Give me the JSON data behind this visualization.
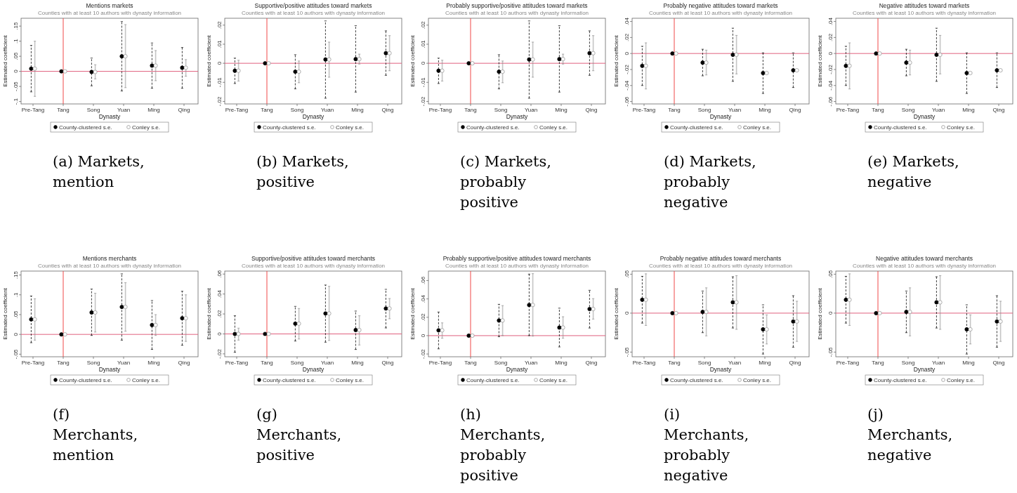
{
  "chart_data": [
    {
      "type": "scatter",
      "title": "Mentions markets",
      "subtitle": "Counties with at least 10 authors with dynasty information",
      "xlabel": "Dynasty",
      "ylabel": "Estimated coefficient",
      "annotations": [
        "(a) Markets, mention"
      ],
      "categories": [
        "Pre-Tang",
        "Tang",
        "Song",
        "Yuan",
        "Ming",
        "Qing"
      ],
      "ylim": [
        -0.108,
        0.176
      ],
      "yticks": [
        {
          "value": -0.1,
          "label": "-.1"
        },
        {
          "value": -0.05,
          "label": "-.05"
        },
        {
          "value": 0,
          "label": "0"
        },
        {
          "value": 0.05,
          "label": ".05"
        },
        {
          "value": 0.1,
          "label": ".1"
        },
        {
          "value": 0.15,
          "label": ".15"
        }
      ],
      "legend": "bottom",
      "marker": "circle",
      "ref_lines": [
        {
          "axis": "y",
          "value": 0,
          "color": "#e0607e"
        },
        {
          "axis": "x",
          "value": "Tang",
          "color": "#f04848"
        }
      ],
      "series": [
        {
          "name": "County-clustered s.e.",
          "color": "#000000",
          "values": [
            0.009,
            0,
            -0.002,
            0.05,
            0.019,
            0.012
          ],
          "errors": [
            [
              -0.068,
              0.086
            ],
            null,
            [
              -0.048,
              0.044
            ],
            [
              -0.065,
              0.165
            ],
            [
              -0.056,
              0.094
            ],
            [
              -0.056,
              0.079
            ]
          ]
        },
        {
          "name": "Conley s.e.",
          "color": "#8c8c8c",
          "values": [
            0.009,
            0,
            -0.002,
            0.05,
            0.019,
            0.012
          ],
          "errors": [
            [
              -0.083,
              0.1
            ],
            null,
            [
              -0.025,
              0.022
            ],
            [
              -0.054,
              0.155
            ],
            [
              -0.031,
              0.069
            ],
            [
              -0.016,
              0.039
            ]
          ]
        }
      ]
    },
    {
      "type": "scatter",
      "title": "Supportive/positive attitudes toward markets",
      "subtitle": "Counties with at least 10 authors with dynasty information",
      "xlabel": "Dynasty",
      "ylabel": "Estimated coefficient",
      "annotations": [
        "(b) Markets, positive"
      ],
      "categories": [
        "Pre-Tang",
        "Tang",
        "Song",
        "Yuan",
        "Ming",
        "Qing"
      ],
      "ylim": [
        -0.0213,
        0.0236
      ],
      "yticks": [
        {
          "value": -0.02,
          "label": "-.02"
        },
        {
          "value": -0.01,
          "label": "-.01"
        },
        {
          "value": 0,
          "label": "0"
        },
        {
          "value": 0.01,
          "label": ".01"
        },
        {
          "value": 0.02,
          "label": ".02"
        }
      ],
      "legend": "bottom",
      "marker": "circle",
      "ref_lines": [
        {
          "axis": "y",
          "value": 0,
          "color": "#e0607e"
        },
        {
          "axis": "x",
          "value": "Tang",
          "color": "#f04848"
        }
      ],
      "series": [
        {
          "name": "County-clustered s.e.",
          "color": "#000000",
          "values": [
            -0.0039,
            0,
            -0.0044,
            0.002,
            0.0022,
            0.0053
          ],
          "errors": [
            [
              -0.0106,
              0.0027
            ],
            null,
            [
              -0.0134,
              0.0045
            ],
            [
              -0.0183,
              0.0222
            ],
            [
              -0.0151,
              0.0197
            ],
            [
              -0.0063,
              0.017
            ]
          ]
        },
        {
          "name": "Conley s.e.",
          "color": "#8c8c8c",
          "values": [
            -0.0039,
            0,
            -0.0044,
            0.002,
            0.0022,
            0.0053
          ],
          "errors": [
            [
              -0.0093,
              0.0016
            ],
            null,
            [
              -0.0102,
              0.0012
            ],
            [
              -0.0073,
              0.0111
            ],
            [
              -0.0004,
              0.0048
            ],
            [
              -0.0039,
              0.0145
            ]
          ]
        }
      ]
    },
    {
      "type": "scatter",
      "title": "Probably supportive/positive attitudes toward markets",
      "subtitle": "Counties with at least 10 authors with dynasty information",
      "xlabel": "Dynasty",
      "ylabel": "Estimated coefficient",
      "annotations": [
        "(c) Markets, probably positive"
      ],
      "categories": [
        "Pre-Tang",
        "Tang",
        "Song",
        "Yuan",
        "Ming",
        "Qing"
      ],
      "ylim": [
        -0.0213,
        0.0236
      ],
      "yticks": [
        {
          "value": -0.02,
          "label": "-.02"
        },
        {
          "value": -0.01,
          "label": "-.01"
        },
        {
          "value": 0,
          "label": "0"
        },
        {
          "value": 0.01,
          "label": ".01"
        },
        {
          "value": 0.02,
          "label": ".02"
        }
      ],
      "legend": "bottom",
      "marker": "circle",
      "ref_lines": [
        {
          "axis": "y",
          "value": 0,
          "color": "#e0607e"
        },
        {
          "axis": "x",
          "value": "Tang",
          "color": "#f04848"
        }
      ],
      "series": [
        {
          "name": "County-clustered s.e.",
          "color": "#000000",
          "values": [
            -0.0039,
            0,
            -0.0044,
            0.002,
            0.0022,
            0.0053
          ],
          "errors": [
            [
              -0.0106,
              0.0027
            ],
            null,
            [
              -0.0134,
              0.0045
            ],
            [
              -0.0183,
              0.0222
            ],
            [
              -0.0151,
              0.0197
            ],
            [
              -0.0063,
              0.017
            ]
          ]
        },
        {
          "name": "Conley s.e.",
          "color": "#8c8c8c",
          "values": [
            -0.0039,
            0,
            -0.0044,
            0.002,
            0.0022,
            0.0053
          ],
          "errors": [
            [
              -0.0093,
              0.0016
            ],
            null,
            [
              -0.0102,
              0.0012
            ],
            [
              -0.0073,
              0.0111
            ],
            [
              -0.0004,
              0.0048
            ],
            [
              -0.0039,
              0.0145
            ]
          ]
        }
      ]
    },
    {
      "type": "scatter",
      "title": "Probably negative attitudes toward markets",
      "subtitle": "Counties with at least 10 authors with dynasty information",
      "xlabel": "Dynasty",
      "ylabel": "Estimated coefficient",
      "annotations": [
        "(d) Markets, probably negative"
      ],
      "categories": [
        "Pre-Tang",
        "Tang",
        "Song",
        "Yuan",
        "Ming",
        "Qing"
      ],
      "ylim": [
        -0.063,
        0.044
      ],
      "yticks": [
        {
          "value": -0.06,
          "label": "-.06"
        },
        {
          "value": -0.04,
          "label": "-.04"
        },
        {
          "value": -0.02,
          "label": "-.02"
        },
        {
          "value": 0,
          "label": "0"
        },
        {
          "value": 0.02,
          "label": ".02"
        },
        {
          "value": 0.04,
          "label": ".04"
        }
      ],
      "legend": "bottom",
      "marker": "circle",
      "ref_lines": [
        {
          "axis": "y",
          "value": 0,
          "color": "#e0607e"
        },
        {
          "axis": "x",
          "value": "Tang",
          "color": "#f04848"
        }
      ],
      "series": [
        {
          "name": "County-clustered s.e.",
          "color": "#000000",
          "values": [
            -0.0154,
            0,
            -0.0114,
            -0.0016,
            -0.0244,
            -0.021
          ],
          "errors": [
            [
              -0.04,
              0.009
            ],
            null,
            [
              -0.0279,
              0.0053
            ],
            [
              -0.0348,
              0.0316
            ],
            [
              -0.0499,
              0.0008
            ],
            [
              -0.0425,
              0.0008
            ]
          ]
        },
        {
          "name": "Conley s.e.",
          "color": "#8c8c8c",
          "values": [
            -0.0154,
            0,
            -0.0114,
            -0.0016,
            -0.0244,
            -0.021
          ],
          "errors": [
            [
              -0.0443,
              0.0133
            ],
            null,
            [
              -0.0268,
              0.0042
            ],
            [
              -0.0255,
              0.0226
            ],
            null,
            null
          ]
        }
      ]
    },
    {
      "type": "scatter",
      "title": "Negative attitudes toward markets",
      "subtitle": "Counties with at least 10 authors with dynasty information",
      "xlabel": "Dynasty",
      "ylabel": "Estimated coefficient",
      "annotations": [
        "(e) Markets, negative"
      ],
      "categories": [
        "Pre-Tang",
        "Tang",
        "Song",
        "Yuan",
        "Ming",
        "Qing"
      ],
      "ylim": [
        -0.063,
        0.044
      ],
      "yticks": [
        {
          "value": -0.06,
          "label": "-.06"
        },
        {
          "value": -0.04,
          "label": "-.04"
        },
        {
          "value": -0.02,
          "label": "-.02"
        },
        {
          "value": 0,
          "label": "0"
        },
        {
          "value": 0.02,
          "label": ".02"
        },
        {
          "value": 0.04,
          "label": ".04"
        }
      ],
      "legend": "bottom",
      "marker": "circle",
      "ref_lines": [
        {
          "axis": "y",
          "value": 0,
          "color": "#e0607e"
        },
        {
          "axis": "x",
          "value": "Tang",
          "color": "#f04848"
        }
      ],
      "series": [
        {
          "name": "County-clustered s.e.",
          "color": "#000000",
          "values": [
            -0.0154,
            0,
            -0.0114,
            -0.0016,
            -0.0244,
            -0.021
          ],
          "errors": [
            [
              -0.04,
              0.009
            ],
            null,
            [
              -0.0279,
              0.0053
            ],
            [
              -0.0348,
              0.0316
            ],
            [
              -0.0499,
              0.0008
            ],
            [
              -0.0425,
              0.0008
            ]
          ]
        },
        {
          "name": "Conley s.e.",
          "color": "#8c8c8c",
          "values": [
            -0.0154,
            0,
            -0.0114,
            -0.0016,
            -0.0244,
            -0.021
          ],
          "errors": [
            [
              -0.0443,
              0.0133
            ],
            null,
            [
              -0.0268,
              0.0042
            ],
            [
              -0.0255,
              0.0226
            ],
            null,
            null
          ]
        }
      ]
    },
    {
      "type": "scatter",
      "title": "Mentions merchants",
      "subtitle": "Counties with at least 10 authors with dynasty information",
      "xlabel": "Dynasty",
      "ylabel": "Estimated coefficient",
      "annotations": [
        "(f) Merchants, mention"
      ],
      "categories": [
        "Pre-Tang",
        "Tang",
        "Song",
        "Yuan",
        "Ming",
        "Qing"
      ],
      "ylim": [
        -0.0565,
        0.16
      ],
      "yticks": [
        {
          "value": -0.05,
          "label": "-.05"
        },
        {
          "value": 0,
          "label": "0"
        },
        {
          "value": 0.05,
          "label": ".05"
        },
        {
          "value": 0.1,
          "label": ".1"
        },
        {
          "value": 0.15,
          "label": ".15"
        }
      ],
      "legend": "bottom",
      "marker": "circle",
      "ref_lines": [
        {
          "axis": "y",
          "value": 0,
          "color": "#e0607e"
        },
        {
          "axis": "x",
          "value": "Tang",
          "color": "#f04848"
        }
      ],
      "series": [
        {
          "name": "County-clustered s.e.",
          "color": "#000000",
          "values": [
            0.038,
            0,
            0.0554,
            0.0694,
            0.0237,
            0.0409
          ],
          "errors": [
            [
              -0.021,
              0.097
            ],
            null,
            [
              -0.0027,
              0.1145
            ],
            [
              -0.0145,
              0.153
            ],
            [
              -0.038,
              0.0855
            ],
            [
              -0.0274,
              0.109
            ]
          ]
        },
        {
          "name": "Conley s.e.",
          "color": "#8c8c8c",
          "values": [
            0.038,
            0,
            0.0554,
            0.0694,
            0.0237,
            0.0409
          ],
          "errors": [
            [
              -0.0145,
              0.09
            ],
            null,
            [
              0.0059,
              0.104
            ],
            [
              0.0081,
              0.1306
            ],
            [
              -0.0027,
              0.05
            ],
            [
              -0.0177,
              0.1
            ]
          ]
        }
      ]
    },
    {
      "type": "scatter",
      "title": "Supportive/positive attitudes toward merchants",
      "subtitle": "Counties with at least 10 authors with dynasty information",
      "xlabel": "Dynasty",
      "ylabel": "Estimated coefficient",
      "annotations": [
        "(g) Merchants, positive"
      ],
      "categories": [
        "Pre-Tang",
        "Tang",
        "Song",
        "Yuan",
        "Ming",
        "Qing"
      ],
      "ylim": [
        -0.0229,
        0.063
      ],
      "yticks": [
        {
          "value": -0.02,
          "label": "-.02"
        },
        {
          "value": 0,
          "label": "0"
        },
        {
          "value": 0.02,
          "label": ".02"
        },
        {
          "value": 0.04,
          "label": ".04"
        },
        {
          "value": 0.06,
          "label": ".06"
        }
      ],
      "legend": "bottom",
      "marker": "circle",
      "ref_lines": [
        {
          "axis": "y",
          "value": 0,
          "color": "#e0607e"
        },
        {
          "axis": "x",
          "value": "Tang",
          "color": "#f04848"
        }
      ],
      "series": [
        {
          "name": "County-clustered s.e.",
          "color": "#000000",
          "values": [
            0,
            0,
            0.0103,
            0.0205,
            0.0039,
            0.0255
          ],
          "errors": [
            [
              -0.0184,
              0.0182
            ],
            null,
            [
              -0.0071,
              0.0276
            ],
            [
              -0.0083,
              0.049
            ],
            [
              -0.0156,
              0.0229
            ],
            [
              0.006,
              0.0447
            ]
          ]
        },
        {
          "name": "Conley s.e.",
          "color": "#8c8c8c",
          "values": [
            0,
            0,
            0.0103,
            0.0205,
            0.0039,
            0.0255
          ],
          "errors": [
            [
              -0.0062,
              0.0058
            ],
            null,
            [
              -0.0051,
              0.0255
            ],
            [
              -0.0066,
              0.0477
            ],
            [
              -0.0111,
              0.0182
            ],
            [
              0.0152,
              0.0355
            ]
          ]
        }
      ]
    },
    {
      "type": "scatter",
      "title": "Probably supportive/positive attitudes toward merchants",
      "subtitle": "Counties with at least 10 authors with dynasty information",
      "xlabel": "Dynasty",
      "ylabel": "Estimated coefficient",
      "annotations": [
        "(h) Merchants, probably positive"
      ],
      "categories": [
        "Pre-Tang",
        "Tang",
        "Song",
        "Yuan",
        "Ming",
        "Qing"
      ],
      "ylim": [
        -0.023,
        0.0703
      ],
      "yticks": [
        {
          "value": -0.02,
          "label": "-.02"
        },
        {
          "value": 0,
          "label": "0"
        },
        {
          "value": 0.02,
          "label": ".02"
        },
        {
          "value": 0.04,
          "label": ".04"
        },
        {
          "value": 0.06,
          "label": ".06"
        }
      ],
      "legend": "bottom",
      "marker": "circle",
      "ref_lines": [
        {
          "axis": "y",
          "value": 0,
          "color": "#e0607e"
        },
        {
          "axis": "x",
          "value": "Tang",
          "color": "#f04848"
        }
      ],
      "series": [
        {
          "name": "County-clustered s.e.",
          "color": "#000000",
          "values": [
            0.0058,
            0,
            0.0165,
            0.0334,
            0.0088,
            0.029
          ],
          "errors": [
            [
              -0.0144,
              0.0257
            ],
            null,
            [
              -0.0012,
              0.0341
            ],
            [
              0,
              0.067
            ],
            [
              -0.0123,
              0.0299
            ],
            [
              0.0083,
              0.0494
            ]
          ]
        },
        {
          "name": "Conley s.e.",
          "color": "#8c8c8c",
          "values": [
            0.0058,
            0,
            0.0165,
            0.0334,
            0.0088,
            0.029
          ],
          "errors": [
            [
              -0.0028,
              0.0139
            ],
            null,
            [
              0,
              0.0327
            ],
            [
              -0.0005,
              0.0675
            ],
            [
              -0.0028,
              0.0206
            ],
            [
              0.018,
              0.0403
            ]
          ]
        }
      ]
    },
    {
      "type": "scatter",
      "title": "Probably negative attitudes toward merchants",
      "subtitle": "Counties with at least 10 authors with dynasty information",
      "xlabel": "Dynasty",
      "ylabel": "Estimated coefficient",
      "annotations": [
        "(i) Merchants, probably negative"
      ],
      "categories": [
        "Pre-Tang",
        "Tang",
        "Song",
        "Yuan",
        "Ming",
        "Qing"
      ],
      "ylim": [
        -0.056,
        0.054
      ],
      "yticks": [
        {
          "value": -0.05,
          "label": "-.05"
        },
        {
          "value": 0,
          "label": "0"
        },
        {
          "value": 0.05,
          "label": ".05"
        }
      ],
      "legend": "bottom",
      "marker": "circle",
      "ref_lines": [
        {
          "axis": "y",
          "value": 0,
          "color": "#e0607e"
        },
        {
          "axis": "x",
          "value": "Tang",
          "color": "#f04848"
        }
      ],
      "series": [
        {
          "name": "County-clustered s.e.",
          "color": "#000000",
          "values": [
            0.0172,
            0,
            0.0016,
            0.0139,
            -0.0208,
            -0.0107
          ],
          "errors": [
            [
              -0.0128,
              0.0473
            ],
            null,
            [
              -0.0251,
              0.0284
            ],
            [
              -0.0191,
              0.0467
            ],
            [
              -0.0525,
              0.0107
            ],
            [
              -0.0437,
              0.0224
            ]
          ]
        },
        {
          "name": "Conley s.e.",
          "color": "#8c8c8c",
          "values": [
            0.0172,
            0,
            0.0016,
            0.0139,
            -0.0208,
            -0.0107
          ],
          "errors": [
            [
              -0.0158,
              0.0505
            ],
            null,
            [
              -0.0292,
              0.0325
            ],
            [
              -0.0208,
              0.0481
            ],
            [
              -0.0396,
              -0.0022
            ],
            [
              -0.0363,
              0.0153
            ]
          ]
        }
      ]
    },
    {
      "type": "scatter",
      "title": "Negative attitudes toward merchants",
      "subtitle": "Counties with at least 10 authors with dynasty information",
      "xlabel": "Dynasty",
      "ylabel": "Estimated coefficient",
      "annotations": [
        "(j) Merchants, negative"
      ],
      "categories": [
        "Pre-Tang",
        "Tang",
        "Song",
        "Yuan",
        "Ming",
        "Qing"
      ],
      "ylim": [
        -0.056,
        0.054
      ],
      "yticks": [
        {
          "value": -0.05,
          "label": "-.05"
        },
        {
          "value": 0,
          "label": "0"
        },
        {
          "value": 0.05,
          "label": ".05"
        }
      ],
      "legend": "bottom",
      "marker": "circle",
      "ref_lines": [
        {
          "axis": "y",
          "value": 0,
          "color": "#e0607e"
        },
        {
          "axis": "x",
          "value": "Tang",
          "color": "#f04848"
        }
      ],
      "series": [
        {
          "name": "County-clustered s.e.",
          "color": "#000000",
          "values": [
            0.0172,
            0,
            0.0016,
            0.0139,
            -0.0208,
            -0.0107
          ],
          "errors": [
            [
              -0.0128,
              0.0473
            ],
            null,
            [
              -0.0251,
              0.0284
            ],
            [
              -0.0191,
              0.0467
            ],
            [
              -0.0525,
              0.0107
            ],
            [
              -0.0437,
              0.0224
            ]
          ]
        },
        {
          "name": "Conley s.e.",
          "color": "#8c8c8c",
          "values": [
            0.0172,
            0,
            0.0016,
            0.0139,
            -0.0208,
            -0.0107
          ],
          "errors": [
            [
              -0.0158,
              0.0505
            ],
            null,
            [
              -0.0292,
              0.0325
            ],
            [
              -0.0208,
              0.0481
            ],
            [
              -0.0396,
              -0.0022
            ],
            [
              -0.0363,
              0.0153
            ]
          ]
        }
      ]
    }
  ]
}
